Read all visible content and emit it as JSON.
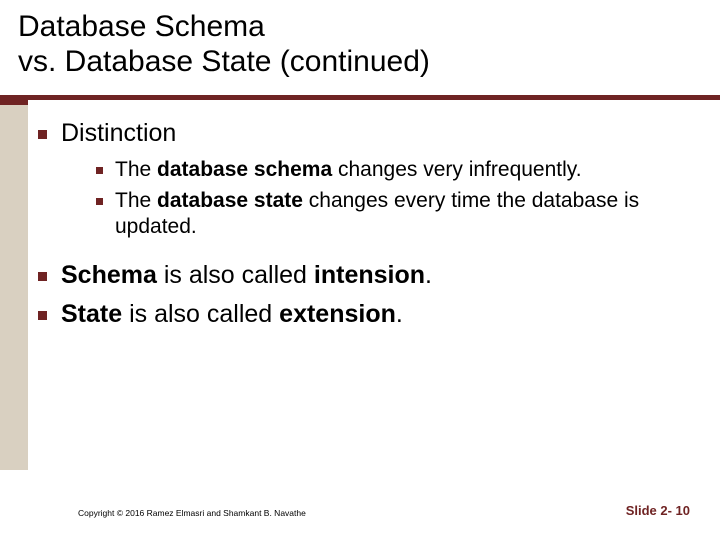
{
  "colors": {
    "accent": "#6f2323",
    "stripe": "#d9d0c1",
    "background": "#ffffff",
    "text": "#000000"
  },
  "typography": {
    "title_fontsize": 30,
    "lvl1_fontsize": 25,
    "lvl2_fontsize": 21,
    "footer_fontsize": 8.5,
    "slidenum_fontsize": 13,
    "font_family": "Arial"
  },
  "title": {
    "line1": "Database Schema",
    "line2": "vs. Database State (continued)"
  },
  "content": {
    "item1": {
      "label": "Distinction",
      "sub1_pre": "The ",
      "sub1_bold": "database schema",
      "sub1_post": " changes very infrequently.",
      "sub2_pre": "The ",
      "sub2_bold": "database state",
      "sub2_post": " changes every time the database is updated."
    },
    "item2_bold1": "Schema",
    "item2_mid": " is also called ",
    "item2_bold2": "intension",
    "item2_post": ".",
    "item3_bold1": "State",
    "item3_mid": " is also called ",
    "item3_bold2": "extension",
    "item3_post": "."
  },
  "footer": {
    "copyright": "Copyright © 2016 Ramez Elmasri and Shamkant B. Navathe",
    "slide_label": "Slide 2- 10"
  }
}
